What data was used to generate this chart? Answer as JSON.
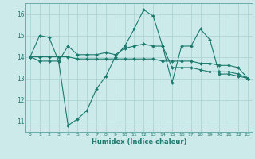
{
  "title": "",
  "xlabel": "Humidex (Indice chaleur)",
  "x": [
    0,
    1,
    2,
    3,
    4,
    5,
    6,
    7,
    8,
    9,
    10,
    11,
    12,
    13,
    14,
    15,
    16,
    17,
    18,
    19,
    20,
    21,
    22,
    23
  ],
  "line1": [
    14.0,
    15.0,
    14.9,
    13.8,
    10.8,
    11.1,
    11.5,
    12.5,
    13.1,
    14.0,
    14.5,
    15.3,
    16.2,
    15.9,
    14.5,
    12.8,
    14.5,
    14.5,
    15.3,
    14.8,
    13.2,
    13.2,
    13.1,
    13.0
  ],
  "line2": [
    14.0,
    13.8,
    13.8,
    13.8,
    14.5,
    14.1,
    14.1,
    14.1,
    14.2,
    14.1,
    14.4,
    14.5,
    14.6,
    14.5,
    14.5,
    13.5,
    13.5,
    13.5,
    13.4,
    13.3,
    13.3,
    13.3,
    13.2,
    13.0
  ],
  "line3": [
    14.0,
    14.0,
    14.0,
    14.0,
    14.0,
    13.9,
    13.9,
    13.9,
    13.9,
    13.9,
    13.9,
    13.9,
    13.9,
    13.9,
    13.8,
    13.8,
    13.8,
    13.8,
    13.7,
    13.7,
    13.6,
    13.6,
    13.5,
    13.0
  ],
  "ylim": [
    10.5,
    16.5
  ],
  "xlim": [
    -0.5,
    23.5
  ],
  "yticks": [
    11,
    12,
    13,
    14,
    15,
    16
  ],
  "xticks": [
    0,
    1,
    2,
    3,
    4,
    5,
    6,
    7,
    8,
    9,
    10,
    11,
    12,
    13,
    14,
    15,
    16,
    17,
    18,
    19,
    20,
    21,
    22,
    23
  ],
  "line_color": "#1a7a6e",
  "bg_color": "#cdeaea",
  "grid_color": "#aed4d4",
  "marker": "D",
  "marker_size": 2.0,
  "line_width": 0.8
}
